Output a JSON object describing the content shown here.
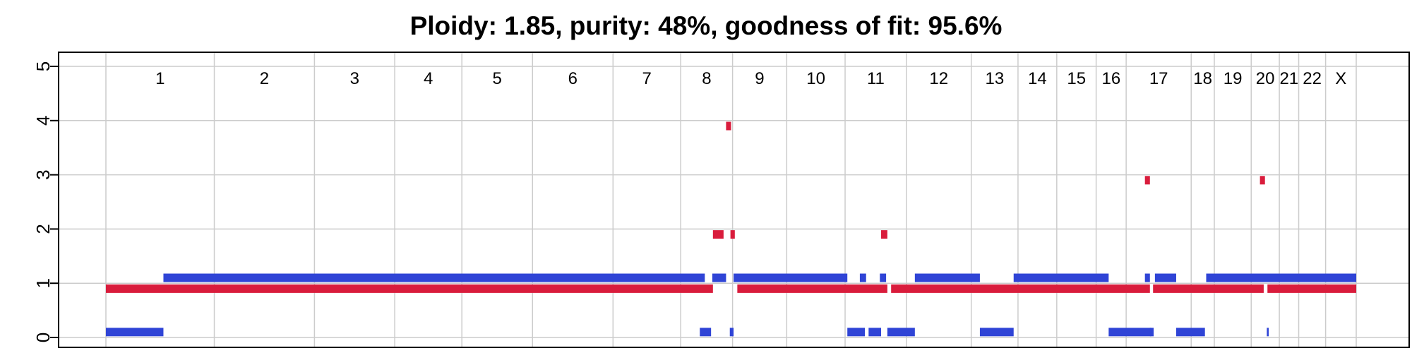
{
  "chart_data": {
    "type": "segment",
    "title": "Ploidy: 1.85, purity: 48%, goodness of fit: 95.6%",
    "xlabel": "",
    "ylabel": "",
    "xlim": [
      0,
      100
    ],
    "ylim": [
      -0.2,
      5.2
    ],
    "y_ticks": [
      "0",
      "1",
      "2",
      "3",
      "4",
      "5"
    ],
    "grid": true,
    "legend": "none",
    "colors": {
      "major": "#d91c3c",
      "minor": "#2f44d6",
      "grid": "#cccccc",
      "frame": "#000000"
    },
    "chromosomes": [
      {
        "name": "1",
        "start": 0,
        "end": 8.67
      },
      {
        "name": "2",
        "start": 8.67,
        "end": 16.68
      },
      {
        "name": "3",
        "start": 16.68,
        "end": 23.1
      },
      {
        "name": "4",
        "start": 23.1,
        "end": 28.47
      },
      {
        "name": "5",
        "start": 28.47,
        "end": 34.12
      },
      {
        "name": "6",
        "start": 34.12,
        "end": 40.56
      },
      {
        "name": "7",
        "start": 40.56,
        "end": 45.97
      },
      {
        "name": "8",
        "start": 45.97,
        "end": 50.12
      },
      {
        "name": "9",
        "start": 50.12,
        "end": 54.45
      },
      {
        "name": "10",
        "start": 54.45,
        "end": 59.12
      },
      {
        "name": "11",
        "start": 59.12,
        "end": 64.02
      },
      {
        "name": "12",
        "start": 64.02,
        "end": 69.21
      },
      {
        "name": "13",
        "start": 69.21,
        "end": 72.95
      },
      {
        "name": "14",
        "start": 72.95,
        "end": 76.05
      },
      {
        "name": "15",
        "start": 76.05,
        "end": 79.2
      },
      {
        "name": "16",
        "start": 79.2,
        "end": 81.6
      },
      {
        "name": "17",
        "start": 81.6,
        "end": 86.8
      },
      {
        "name": "18",
        "start": 86.8,
        "end": 88.65
      },
      {
        "name": "19",
        "start": 88.65,
        "end": 91.6
      },
      {
        "name": "20",
        "start": 91.6,
        "end": 93.85
      },
      {
        "name": "21",
        "start": 93.85,
        "end": 95.4
      },
      {
        "name": "22",
        "start": 95.4,
        "end": 97.55
      },
      {
        "name": "X",
        "start": 97.55,
        "end": 100
      }
    ],
    "series": [
      {
        "name": "major",
        "segments": [
          {
            "x0": 0,
            "x1": 48.55,
            "y": 0.9
          },
          {
            "x0": 48.55,
            "x1": 49.4,
            "y": 1.9
          },
          {
            "x0": 49.6,
            "x1": 50.0,
            "y": 3.9
          },
          {
            "x0": 49.95,
            "x1": 50.3,
            "y": 1.9
          },
          {
            "x0": 50.5,
            "x1": 62.5,
            "y": 0.9
          },
          {
            "x0": 62.0,
            "x1": 62.5,
            "y": 1.9
          },
          {
            "x0": 62.8,
            "x1": 83.5,
            "y": 0.9
          },
          {
            "x0": 83.1,
            "x1": 83.5,
            "y": 2.9
          },
          {
            "x0": 83.75,
            "x1": 92.6,
            "y": 0.9
          },
          {
            "x0": 92.3,
            "x1": 92.7,
            "y": 2.9
          },
          {
            "x0": 92.9,
            "x1": 100,
            "y": 0.9
          }
        ]
      },
      {
        "name": "minor",
        "segments": [
          {
            "x0": 0,
            "x1": 4.6,
            "y": 0.1
          },
          {
            "x0": 4.6,
            "x1": 47.9,
            "y": 1.1
          },
          {
            "x0": 47.5,
            "x1": 48.4,
            "y": 0.1
          },
          {
            "x0": 48.5,
            "x1": 49.6,
            "y": 1.1
          },
          {
            "x0": 49.9,
            "x1": 50.2,
            "y": 0.1
          },
          {
            "x0": 50.2,
            "x1": 59.3,
            "y": 1.1
          },
          {
            "x0": 59.3,
            "x1": 60.7,
            "y": 0.1
          },
          {
            "x0": 60.3,
            "x1": 60.8,
            "y": 1.1
          },
          {
            "x0": 61.0,
            "x1": 62.0,
            "y": 0.1
          },
          {
            "x0": 61.9,
            "x1": 62.4,
            "y": 1.1
          },
          {
            "x0": 62.5,
            "x1": 64.7,
            "y": 0.1
          },
          {
            "x0": 64.7,
            "x1": 69.9,
            "y": 1.1
          },
          {
            "x0": 69.9,
            "x1": 72.6,
            "y": 0.1
          },
          {
            "x0": 72.6,
            "x1": 80.2,
            "y": 1.1
          },
          {
            "x0": 80.2,
            "x1": 83.6,
            "y": 0.1
          },
          {
            "x0": 83.1,
            "x1": 83.5,
            "y": 1.1
          },
          {
            "x0": 83.5,
            "x1": 83.8,
            "y": 0.1
          },
          {
            "x0": 83.9,
            "x1": 85.6,
            "y": 1.1
          },
          {
            "x0": 85.6,
            "x1": 87.9,
            "y": 0.1
          },
          {
            "x0": 88.0,
            "x1": 100,
            "y": 1.1
          },
          {
            "x0": 92.85,
            "x1": 93.0,
            "y": 0.1
          }
        ]
      }
    ]
  }
}
